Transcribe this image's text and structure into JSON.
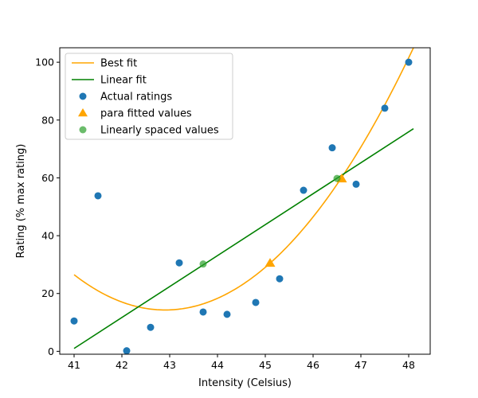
{
  "chart_data": {
    "type": "scatter",
    "title": "",
    "xlabel": "Intensity (Celsius)",
    "ylabel": "Rating (% max rating)",
    "xlim": [
      40.7,
      48.45
    ],
    "ylim": [
      -1,
      105
    ],
    "xticks": [
      41,
      42,
      43,
      44,
      45,
      46,
      47,
      48
    ],
    "yticks": [
      0,
      20,
      40,
      60,
      80,
      100
    ],
    "grid": false,
    "legend_position": "top-left",
    "series": [
      {
        "name": "Best fit",
        "kind": "line",
        "color": "#ffa500",
        "quadratic_fit": [
          41,
          48.1,
          26.5,
          14.3,
          105
        ]
      },
      {
        "name": "Linear fit",
        "kind": "line",
        "color": "#008000",
        "x": [
          41,
          48.1
        ],
        "y": [
          1,
          77
        ]
      },
      {
        "name": "Actual ratings",
        "kind": "scatter",
        "marker": "circle",
        "color": "#1f77b4",
        "points": [
          [
            41.0,
            10.5
          ],
          [
            41.5,
            53.8
          ],
          [
            42.1,
            0.2
          ],
          [
            42.6,
            8.3
          ],
          [
            43.2,
            30.6
          ],
          [
            43.7,
            13.6
          ],
          [
            44.2,
            12.8
          ],
          [
            44.8,
            16.9
          ],
          [
            45.3,
            25.1
          ],
          [
            45.8,
            55.7
          ],
          [
            46.4,
            70.4
          ],
          [
            46.9,
            57.8
          ],
          [
            47.5,
            84.1
          ],
          [
            48.0,
            100.0
          ]
        ]
      },
      {
        "name": "para fitted values",
        "kind": "scatter",
        "marker": "triangle",
        "color": "#ffa500",
        "points": [
          [
            45.1,
            30.5
          ],
          [
            46.6,
            59.7
          ]
        ]
      },
      {
        "name": "Linearly spaced values",
        "kind": "scatter",
        "marker": "circle",
        "color": "#2ca02c",
        "opacity": 0.7,
        "points": [
          [
            43.7,
            30.2
          ],
          [
            46.5,
            59.8
          ]
        ]
      }
    ]
  }
}
